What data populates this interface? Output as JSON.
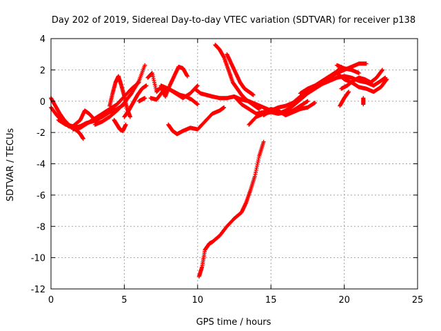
{
  "chart_data": {
    "type": "scatter",
    "title": "Day 202 of 2019, Sidereal Day-to-day VTEC variation (SDTVAR) for receiver p138",
    "xlabel": "GPS time / hours",
    "ylabel": "SDTVAR / TECUs",
    "xlim": [
      0,
      25
    ],
    "ylim": [
      -12,
      4
    ],
    "xticks": [
      0,
      5,
      10,
      15,
      20,
      25
    ],
    "yticks": [
      -12,
      -10,
      -8,
      -6,
      -4,
      -2,
      0,
      2,
      4
    ],
    "xtick_labels": [
      "0",
      "5",
      "10",
      "15",
      "20",
      "25"
    ],
    "ytick_labels": [
      "-12",
      "-10",
      "-8",
      "-6",
      "-4",
      "-2",
      "0",
      "2",
      "4"
    ],
    "grid": true,
    "marker": "+",
    "color": "#ff0000",
    "series": [
      {
        "x": [
          0,
          0.3,
          0.6,
          0.9,
          1.2,
          1.5,
          1.8,
          2.0,
          2.2
        ],
        "y": [
          0.2,
          -0.3,
          -0.8,
          -1.2,
          -1.5,
          -1.7,
          -1.9,
          -2.1,
          -2.4
        ]
      },
      {
        "x": [
          0,
          0.4,
          0.8,
          1.2,
          1.6,
          2.0,
          2.4,
          2.8,
          3.2
        ],
        "y": [
          -0.4,
          -0.9,
          -1.3,
          -1.6,
          -1.7,
          -1.6,
          -1.4,
          -1.3,
          -1.2
        ]
      },
      {
        "x": [
          0.5,
          1.0,
          1.5,
          2.0,
          2.3,
          2.6,
          3.0,
          3.5,
          4.0,
          4.5,
          5.0
        ],
        "y": [
          -1.2,
          -1.5,
          -1.6,
          -1.2,
          -0.6,
          -0.8,
          -1.2,
          -1.0,
          -0.7,
          -0.5,
          -0.2
        ]
      },
      {
        "x": [
          1.5,
          2.0,
          2.5,
          3.0,
          3.5,
          4.0,
          4.5,
          5.0,
          5.5,
          6.0
        ],
        "y": [
          -1.8,
          -1.7,
          -1.4,
          -1.1,
          -0.8,
          -0.5,
          -0.2,
          0.3,
          0.8,
          1.2
        ]
      },
      {
        "x": [
          3.0,
          3.5,
          4.0,
          4.5,
          5.0,
          5.5,
          6.0,
          6.4
        ],
        "y": [
          -1.5,
          -1.3,
          -1.0,
          -0.6,
          -0.1,
          0.5,
          1.3,
          2.3
        ]
      },
      {
        "x": [
          4.0,
          4.2,
          4.4,
          4.6,
          4.8,
          5.0,
          5.2,
          5.4
        ],
        "y": [
          -0.3,
          0.5,
          1.2,
          1.6,
          1.0,
          0.3,
          -0.5,
          -1.0
        ]
      },
      {
        "x": [
          4.3,
          4.5,
          4.7,
          4.9,
          5.1
        ],
        "y": [
          -1.2,
          -1.5,
          -1.8,
          -1.9,
          -1.5
        ]
      },
      {
        "x": [
          5.0,
          5.3,
          5.6,
          5.9,
          6.2,
          6.5
        ],
        "y": [
          -1.0,
          -0.6,
          -0.1,
          0.4,
          0.8,
          1.0
        ]
      },
      {
        "x": [
          6.6,
          6.9,
          7.2,
          7.5,
          7.8,
          8.1,
          8.4,
          8.7,
          9.0,
          9.3
        ],
        "y": [
          1.5,
          1.8,
          0.6,
          0.9,
          0.3,
          1.0,
          1.6,
          2.2,
          2.1,
          1.6
        ]
      },
      {
        "x": [
          6.8,
          7.2,
          7.6,
          8.0,
          8.4,
          8.8,
          9.2,
          9.6,
          10.0
        ],
        "y": [
          0.2,
          0.1,
          0.6,
          0.8,
          0.6,
          0.4,
          0.3,
          0.1,
          -0.2
        ]
      },
      {
        "x": [
          7.5,
          8.0,
          8.5,
          9.0,
          9.5,
          10.0
        ],
        "y": [
          1.0,
          0.8,
          0.5,
          0.2,
          0.5,
          1.0
        ]
      },
      {
        "x": [
          8.0,
          8.3,
          8.6,
          9.0,
          9.5,
          10.0,
          10.5,
          11.0,
          11.5,
          11.8
        ],
        "y": [
          -1.5,
          -1.9,
          -2.1,
          -1.9,
          -1.7,
          -1.8,
          -1.3,
          -0.8,
          -0.6,
          -0.4
        ]
      },
      {
        "x": [
          9.8,
          10.2,
          10.6,
          11.0,
          11.5,
          12.0,
          12.5,
          13.0,
          13.5,
          14.0,
          14.5,
          15.0
        ],
        "y": [
          0.8,
          0.5,
          0.4,
          0.3,
          0.2,
          0.2,
          0.3,
          0.1,
          0,
          -0.2,
          -0.4,
          -0.6
        ]
      },
      {
        "x": [
          11.2,
          11.5,
          11.8,
          12.1,
          12.4,
          12.7,
          13.0,
          13.3,
          13.6,
          13.9,
          14.2
        ],
        "y": [
          3.6,
          3.3,
          2.8,
          2.0,
          1.2,
          0.8,
          0.4,
          0.1,
          -0.1,
          -0.3,
          -0.5
        ]
      },
      {
        "x": [
          12.0,
          12.3,
          12.6,
          12.9,
          13.2,
          13.5,
          13.8
        ],
        "y": [
          3.0,
          2.4,
          1.8,
          1.2,
          0.8,
          0.6,
          0.4
        ]
      },
      {
        "x": [
          10.1,
          10.3,
          10.5,
          10.8,
          11.0,
          11.5,
          12.0,
          12.5,
          13.0,
          13.3,
          13.6,
          13.9,
          14.2,
          14.5
        ],
        "y": [
          -11.2,
          -10.6,
          -9.5,
          -9.1,
          -9.0,
          -8.6,
          -8.0,
          -7.5,
          -7.1,
          -6.5,
          -5.7,
          -4.8,
          -3.5,
          -2.6
        ]
      },
      {
        "x": [
          12.5,
          13.0,
          13.5,
          14.0,
          14.5,
          15.0,
          15.5,
          16.0,
          16.5,
          17.0,
          17.5,
          18.0
        ],
        "y": [
          0.3,
          -0.2,
          -0.5,
          -0.8,
          -0.7,
          -0.5,
          -0.6,
          -0.9,
          -0.7,
          -0.5,
          -0.4,
          -0.1
        ]
      },
      {
        "x": [
          13.5,
          14.0,
          14.5,
          15.0,
          15.5,
          16.0,
          16.5,
          17.0,
          17.5
        ],
        "y": [
          -1.5,
          -1.0,
          -0.8,
          -0.7,
          -0.8,
          -0.7,
          -0.6,
          -0.3,
          0.0
        ]
      },
      {
        "x": [
          14.5,
          15.0,
          15.5,
          16.0,
          16.5,
          17.0,
          17.5,
          18.0,
          18.5,
          19.0,
          19.5,
          20.0,
          20.5,
          21.0,
          21.5
        ],
        "y": [
          -0.9,
          -0.6,
          -0.4,
          -0.3,
          -0.1,
          0.3,
          0.6,
          0.9,
          1.2,
          1.5,
          1.8,
          2.0,
          2.2,
          2.4,
          2.4
        ]
      },
      {
        "x": [
          15.5,
          16.0,
          16.5,
          17.0,
          17.5,
          18.0,
          18.5,
          19.0,
          19.5,
          20.0,
          20.5,
          21.0,
          21.5,
          22.0,
          22.5,
          22.8
        ],
        "y": [
          -0.8,
          -0.6,
          -0.3,
          0.1,
          0.5,
          0.8,
          1.1,
          1.3,
          1.5,
          1.6,
          1.5,
          1.3,
          1.2,
          1.0,
          1.3,
          1.5
        ]
      },
      {
        "x": [
          17.0,
          17.5,
          18.0,
          18.5,
          19.0,
          19.5,
          19.8
        ],
        "y": [
          0.5,
          0.8,
          1.0,
          1.3,
          1.6,
          1.9,
          2.2
        ]
      },
      {
        "x": [
          19.0,
          19.5,
          20.0,
          20.5,
          21.0,
          21.5,
          22.0,
          22.5,
          22.9
        ],
        "y": [
          1.5,
          1.8,
          1.4,
          1.2,
          0.9,
          0.8,
          0.6,
          0.9,
          1.4
        ]
      },
      {
        "x": [
          19.8,
          20.2,
          20.6,
          21.0,
          21.4,
          21.8,
          22.2,
          22.6
        ],
        "y": [
          0.8,
          1.0,
          1.3,
          1.5,
          1.4,
          1.2,
          1.5,
          2.0
        ]
      },
      {
        "x": [
          19.7,
          20.0,
          20.3
        ],
        "y": [
          -0.3,
          0.2,
          0.6
        ]
      },
      {
        "x": [
          21.3,
          21.3
        ],
        "y": [
          -0.2,
          0.2
        ]
      },
      {
        "x": [
          19.5,
          20.0,
          20.5,
          21.0
        ],
        "y": [
          2.3,
          2.1,
          2.0,
          1.8
        ]
      },
      {
        "x": [
          6.0,
          6.2,
          6.4
        ],
        "y": [
          0.0,
          0.1,
          0.2
        ]
      }
    ]
  }
}
